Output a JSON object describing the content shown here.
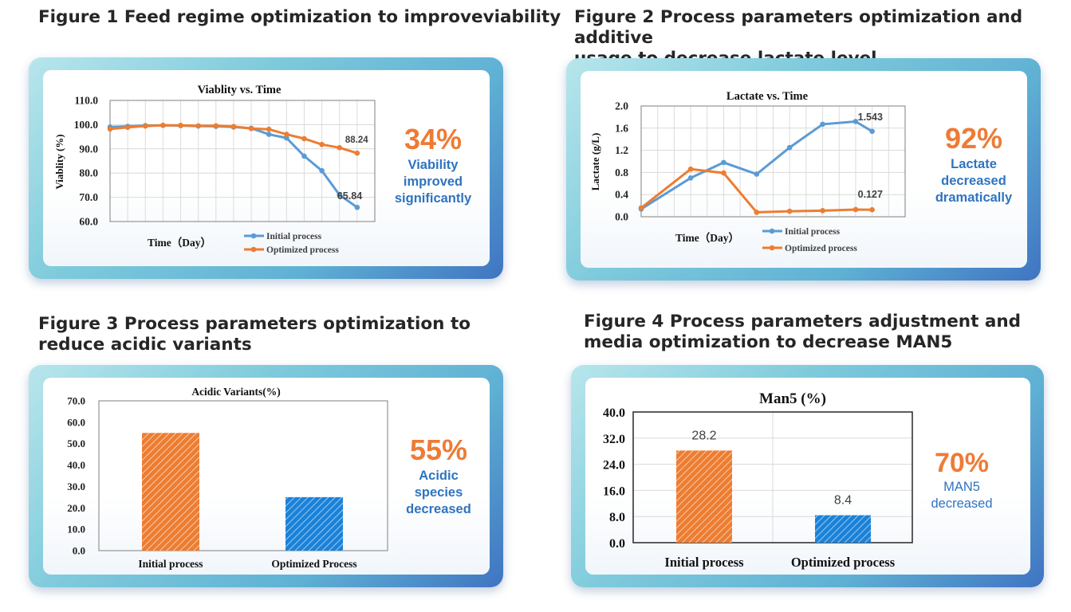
{
  "headings": {
    "fig1": "Figure 1 Feed regime optimization to improveviability",
    "fig2_line1": "Figure 2 Process parameters optimization and additive",
    "fig2_line2": "usage to decrease lactate level",
    "fig3_line1": "Figure 3 Process parameters optimization to",
    "fig3_line2": "reduce acidic variants",
    "fig4_line1": "Figure 4 Process parameters adjustment and",
    "fig4_line2": "media optimization to decrease MAN5"
  },
  "callouts": {
    "fig1": {
      "percent": "34%",
      "line1": "Viability",
      "line2": "improved",
      "line3": "significantly"
    },
    "fig2": {
      "percent": "92%",
      "line1": "Lactate",
      "line2": "decreased",
      "line3": "dramatically"
    },
    "fig3": {
      "percent": "55%",
      "line1": "Acidic",
      "line2": "species",
      "line3": "decreased"
    },
    "fig4": {
      "percent": "70%",
      "line1": "MAN5",
      "line2": "decreased"
    }
  },
  "colors": {
    "initial": "#5b9bd5",
    "optimized": "#ed7d31",
    "accent_text": "#2e74c0",
    "percent_text": "#ee7b35"
  },
  "chart_data": [
    {
      "type": "line",
      "title": "Viablity vs. Time",
      "xlabel": "Time（Day）",
      "ylabel": "Viablity (%)",
      "ylim": [
        60,
        110
      ],
      "yticks": [
        "60.0",
        "70.0",
        "80.0",
        "90.0",
        "100.0",
        "110.0"
      ],
      "x": [
        0,
        1,
        2,
        3,
        4,
        5,
        6,
        7,
        8,
        9,
        10,
        11,
        12,
        13,
        14
      ],
      "series": [
        {
          "name": "Initial process",
          "values": [
            99.0,
            99.3,
            99.6,
            99.7,
            99.6,
            99.4,
            99.3,
            99.0,
            98.5,
            96.0,
            94.5,
            87.0,
            81.0,
            71.0,
            65.84
          ]
        },
        {
          "name": "Optimized process",
          "values": [
            98.2,
            98.9,
            99.4,
            99.7,
            99.7,
            99.5,
            99.5,
            99.2,
            98.4,
            98.1,
            96.0,
            94.2,
            91.8,
            90.5,
            88.24
          ]
        }
      ],
      "labels": [
        {
          "text": "88.24",
          "series": 1,
          "point": 14
        },
        {
          "text": "65.84",
          "series": 0,
          "point": 14
        }
      ],
      "legend": "bottom",
      "grid": true
    },
    {
      "type": "line",
      "title": "Lactate vs. Time",
      "xlabel": "Time（Day）",
      "ylabel": "Lactate (g/L)",
      "ylim": [
        0,
        2.0
      ],
      "yticks": [
        "0.0",
        "0.4",
        "0.8",
        "1.2",
        "1.6",
        "2.0"
      ],
      "x": [
        0,
        1,
        2,
        3,
        4,
        5,
        6,
        7,
        8,
        9,
        10,
        11,
        12,
        13,
        14
      ],
      "series": [
        {
          "name": "Initial process",
          "points": [
            [
              0,
              0.14
            ],
            [
              3,
              0.7
            ],
            [
              5,
              0.98
            ],
            [
              7,
              0.77
            ],
            [
              9,
              1.25
            ],
            [
              11,
              1.67
            ],
            [
              13,
              1.72
            ],
            [
              14,
              1.543
            ]
          ]
        },
        {
          "name": "Optimized process",
          "points": [
            [
              0,
              0.16
            ],
            [
              3,
              0.86
            ],
            [
              5,
              0.79
            ],
            [
              7,
              0.08
            ],
            [
              9,
              0.1
            ],
            [
              11,
              0.11
            ],
            [
              13,
              0.13
            ],
            [
              14,
              0.127
            ]
          ]
        }
      ],
      "labels": [
        {
          "text": "1.543",
          "series": 0
        },
        {
          "text": "0.127",
          "series": 1
        }
      ],
      "legend": "bottom",
      "grid": true
    },
    {
      "type": "bar",
      "title": "Acidic Variants(%)",
      "categories": [
        "Initial process",
        "Optimized Process"
      ],
      "values": [
        55.0,
        25.0
      ],
      "ylim": [
        0,
        70
      ],
      "yticks": [
        "0.0",
        "10.0",
        "20.0",
        "30.0",
        "40.0",
        "50.0",
        "60.0",
        "70.0"
      ],
      "xlabel": "",
      "ylabel": "",
      "grid": false
    },
    {
      "type": "bar",
      "title": "Man5 (%)",
      "categories": [
        "Initial process",
        "Optimized process"
      ],
      "values": [
        28.2,
        8.4
      ],
      "value_labels": [
        "28.2",
        "8.4"
      ],
      "ylim": [
        0,
        40
      ],
      "yticks": [
        "0.0",
        "8.0",
        "16.0",
        "24.0",
        "32.0",
        "40.0"
      ],
      "xlabel": "",
      "ylabel": "",
      "grid": true
    }
  ]
}
